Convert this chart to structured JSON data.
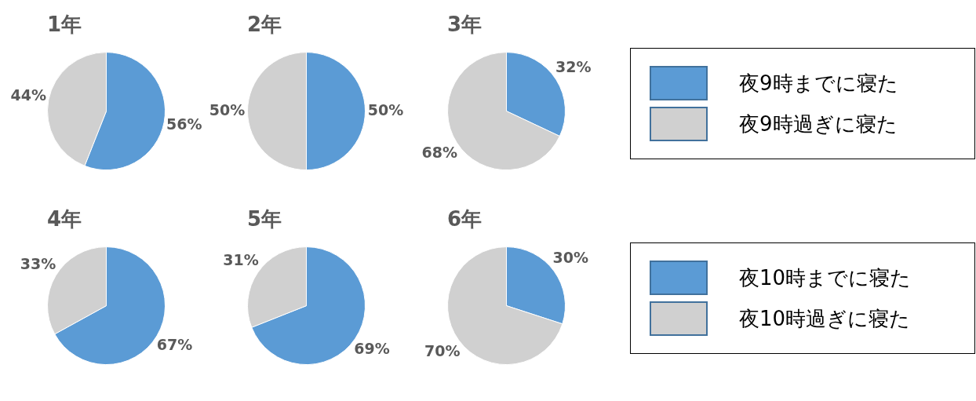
{
  "chart_data": [
    {
      "type": "pie",
      "title": "1年",
      "categories": [
        null,
        null
      ],
      "values": [
        56,
        44
      ],
      "colors": [
        "#5b9bd5",
        "#d0d0d0"
      ],
      "value_labels": [
        "56%",
        "44%"
      ]
    },
    {
      "type": "pie",
      "title": "2年",
      "categories": [
        null,
        null
      ],
      "values": [
        50,
        50
      ],
      "colors": [
        "#5b9bd5",
        "#d0d0d0"
      ],
      "value_labels": [
        "50%",
        "50%"
      ]
    },
    {
      "type": "pie",
      "title": "3年",
      "categories": [
        "夜9時までに寝た",
        "夜9時過ぎに寝た"
      ],
      "values": [
        32,
        68
      ],
      "colors": [
        "#5b9bd5",
        "#d0d0d0"
      ],
      "value_labels": [
        "32%",
        "68%"
      ],
      "legend": "right"
    },
    {
      "type": "pie",
      "title": "4年",
      "categories": [
        null,
        null
      ],
      "values": [
        67,
        33
      ],
      "colors": [
        "#5b9bd5",
        "#d0d0d0"
      ],
      "value_labels": [
        "67%",
        "33%"
      ]
    },
    {
      "type": "pie",
      "title": "5年",
      "categories": [
        null,
        null
      ],
      "values": [
        69,
        31
      ],
      "colors": [
        "#5b9bd5",
        "#d0d0d0"
      ],
      "value_labels": [
        "69%",
        "31%"
      ]
    },
    {
      "type": "pie",
      "title": "6年",
      "categories": [
        "夜10時までに寝た",
        "夜10時過ぎに寝た"
      ],
      "values": [
        30,
        70
      ],
      "colors": [
        "#5b9bd5",
        "#d0d0d0"
      ],
      "value_labels": [
        "30%",
        "70%"
      ],
      "legend": "right"
    }
  ]
}
